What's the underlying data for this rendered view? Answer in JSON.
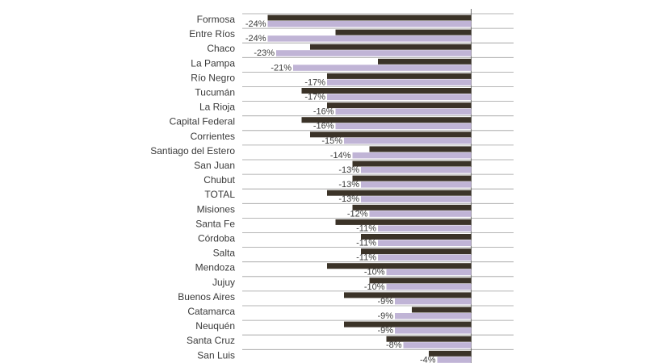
{
  "chart_data": {
    "type": "bar",
    "orientation": "horizontal",
    "categories": [
      "Formosa",
      "Entre Ríos",
      "Chaco",
      "La Pampa",
      "Río Negro",
      "Tucumán",
      "La Rioja",
      "Capital Federal",
      "Corrientes",
      "Santiago del Estero",
      "San Juan",
      "Chubut",
      "TOTAL",
      "Misiones",
      "Santa Fe",
      "Córdoba",
      "Salta",
      "Mendoza",
      "Jujuy",
      "Buenos Aires",
      "Catamarca",
      "Neuquén",
      "Santa Cruz",
      "San Luis"
    ],
    "series": [
      {
        "values": [
          -24,
          -24,
          -23,
          -21,
          -17,
          -17,
          -16,
          -16,
          -15,
          -14,
          -13,
          -13,
          -13,
          -12,
          -11,
          -11,
          -11,
          -10,
          -10,
          -9,
          -9,
          -9,
          -8,
          -4
        ],
        "labels": [
          "-24%",
          "-24%",
          "-23%",
          "-21%",
          "-17%",
          "-17%",
          "-16%",
          "-16%",
          "-15%",
          "-14%",
          "-13%",
          "-13%",
          "-13%",
          "-12%",
          "-11%",
          "-11%",
          "-11%",
          "-10%",
          "-10%",
          "-9%",
          "-9%",
          "-9%",
          "-8%",
          "-4%"
        ],
        "color": "#c0b4d6"
      },
      {
        "values": [
          -24,
          -16,
          -19,
          -11,
          -17,
          -20,
          -17,
          -20,
          -19,
          -12,
          -14,
          -14,
          -17,
          -14,
          -16,
          -13,
          -13,
          -17,
          -12,
          -15,
          -7,
          -15,
          -10,
          -5
        ],
        "color": "#3b3328"
      }
    ],
    "xlim": [
      -27,
      5
    ],
    "xlabel": "",
    "ylabel": "",
    "title": "",
    "grid": true
  },
  "colors": {
    "grid": "#9e9e9e",
    "text": "#3a3a3a"
  }
}
